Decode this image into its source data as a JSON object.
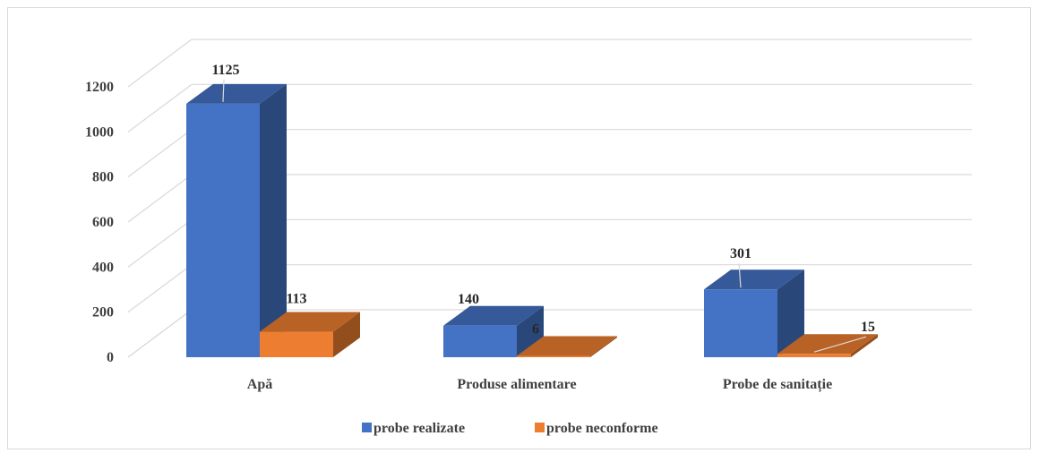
{
  "chart_data": {
    "type": "bar",
    "categories": [
      "Apă",
      "Produse alimentare",
      "Probe de sanitație"
    ],
    "series": [
      {
        "name": "probe realizate",
        "values": [
          1125,
          140,
          301
        ],
        "color": "#4472c4"
      },
      {
        "name": "probe neconforme",
        "values": [
          113,
          6,
          15
        ],
        "color": "#ed7d31"
      }
    ],
    "yticks": [
      0,
      200,
      400,
      600,
      800,
      1000,
      1200
    ],
    "ylim": [
      0,
      1200
    ],
    "grid": true,
    "legend_position": "bottom",
    "style": "3d-clustered-column"
  }
}
